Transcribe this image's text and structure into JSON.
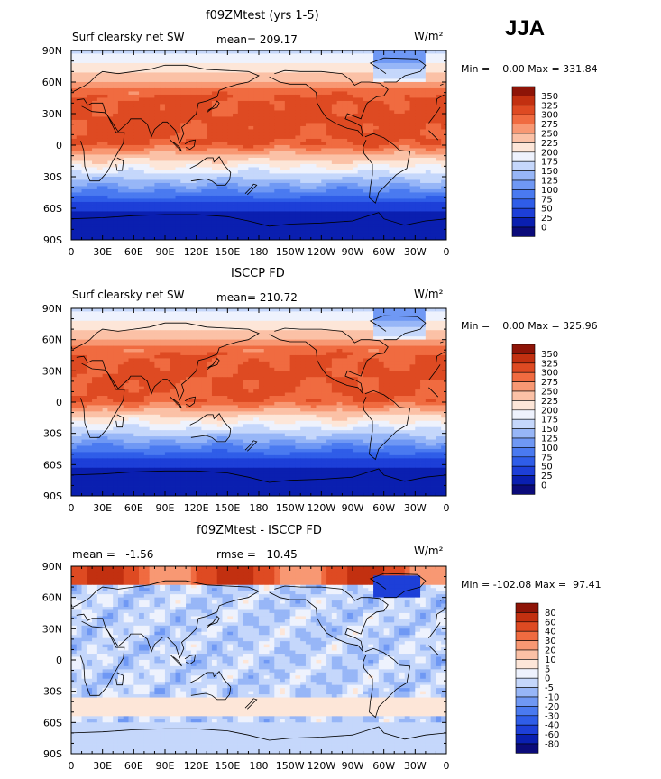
{
  "season": "JJA",
  "panels": [
    {
      "title": "f09ZMtest (yrs 1-5)",
      "left": "Surf clearsky net SW",
      "middle": "mean= 209.17",
      "units": "W/m²",
      "minmax": "Min =    0.00 Max = 331.84",
      "chart_data": {
        "type": "heatmap",
        "field": "Surf clearsky net SW",
        "x_ticks": [
          "0",
          "30E",
          "60E",
          "90E",
          "120E",
          "150E",
          "180",
          "150W",
          "120W",
          "90W",
          "60W",
          "30W",
          "0"
        ],
        "y_ticks": [
          "90N",
          "60N",
          "30N",
          "0",
          "30S",
          "60S",
          "90S"
        ],
        "legend": {
          "labels": [
            "0",
            "25",
            "50",
            "75",
            "100",
            "125",
            "150",
            "175",
            "200",
            "225",
            "250",
            "275",
            "300",
            "325",
            "350"
          ],
          "colors": [
            "#0b0b7a",
            "#0a1fb0",
            "#1d3fd8",
            "#2f5de8",
            "#4a7af0",
            "#6f98f4",
            "#97b6f7",
            "#c5d7fb",
            "#eef2fd",
            "#fde6d8",
            "#fbc1a6",
            "#f89873",
            "#f06b40",
            "#de4a22",
            "#c23010",
            "#8e1407"
          ]
        }
      }
    },
    {
      "title": "ISCCP FD",
      "left": "Surf clearsky net SW",
      "middle": "mean= 210.72",
      "units": "W/m²",
      "minmax": "Min =    0.00 Max = 325.96",
      "chart_data": {
        "type": "heatmap",
        "field": "Surf clearsky net SW",
        "x_ticks": [
          "0",
          "30E",
          "60E",
          "90E",
          "120E",
          "150E",
          "180",
          "150W",
          "120W",
          "90W",
          "60W",
          "30W",
          "0"
        ],
        "y_ticks": [
          "90N",
          "60N",
          "30N",
          "0",
          "30S",
          "60S",
          "90S"
        ],
        "legend": {
          "labels": [
            "0",
            "25",
            "50",
            "75",
            "100",
            "125",
            "150",
            "175",
            "200",
            "225",
            "250",
            "275",
            "300",
            "325",
            "350"
          ],
          "colors": [
            "#0b0b7a",
            "#0a1fb0",
            "#1d3fd8",
            "#2f5de8",
            "#4a7af0",
            "#6f98f4",
            "#97b6f7",
            "#c5d7fb",
            "#eef2fd",
            "#fde6d8",
            "#fbc1a6",
            "#f89873",
            "#f06b40",
            "#de4a22",
            "#c23010",
            "#8e1407"
          ]
        }
      }
    },
    {
      "title": "f09ZMtest - ISCCP FD",
      "left": "mean =   -1.56",
      "middle": "rmse =   10.45",
      "units": "W/m²",
      "minmax": "Min = -102.08 Max =  97.41",
      "chart_data": {
        "type": "heatmap",
        "field": "difference",
        "x_ticks": [
          "0",
          "30E",
          "60E",
          "90E",
          "120E",
          "150E",
          "180",
          "150W",
          "120W",
          "90W",
          "60W",
          "30W",
          "0"
        ],
        "y_ticks": [
          "90N",
          "60N",
          "30N",
          "0",
          "30S",
          "60S",
          "90S"
        ],
        "legend": {
          "labels": [
            "-80",
            "-60",
            "-40",
            "-30",
            "-20",
            "-10",
            "-5",
            "0",
            "5",
            "10",
            "20",
            "30",
            "40",
            "60",
            "80"
          ],
          "colors": [
            "#0b0b7a",
            "#0a1fb0",
            "#1d3fd8",
            "#2f5de8",
            "#4a7af0",
            "#6f98f4",
            "#97b6f7",
            "#c5d7fb",
            "#eef2fd",
            "#fde6d8",
            "#fbc1a6",
            "#f89873",
            "#f06b40",
            "#de4a22",
            "#c23010",
            "#8e1407"
          ]
        }
      }
    }
  ]
}
